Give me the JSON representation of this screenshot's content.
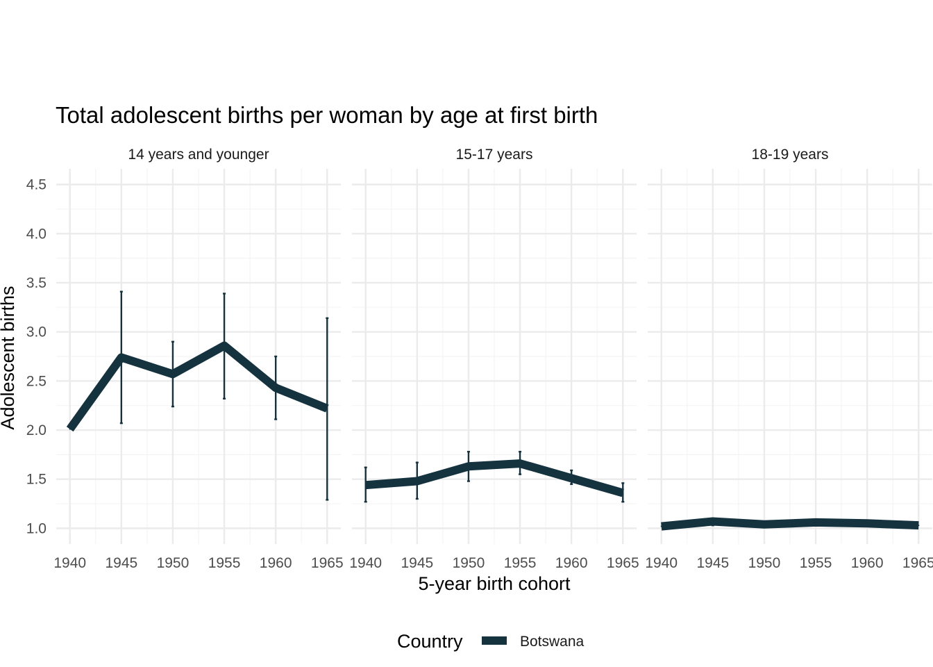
{
  "chart_data": {
    "type": "line",
    "title": "Total adolescent births per woman by age at first birth",
    "xlabel": "5-year birth cohort",
    "ylabel": "Adolescent births",
    "x": [
      1940,
      1945,
      1950,
      1955,
      1960,
      1965
    ],
    "x_tick_labels": [
      "1940",
      "1945",
      "1950",
      "1955",
      "1960",
      "1965"
    ],
    "y_ticks": [
      1.0,
      1.5,
      2.0,
      2.5,
      3.0,
      3.5,
      4.0,
      4.5
    ],
    "y_tick_labels": [
      "1.0",
      "1.5",
      "2.0",
      "2.5",
      "3.0",
      "3.5",
      "4.0",
      "4.5"
    ],
    "ylim": [
      0.84,
      4.66
    ],
    "grid": true,
    "facets": [
      {
        "label": "14 years and younger",
        "series": [
          {
            "name": "Botswana",
            "values": [
              2.01,
              2.74,
              2.57,
              2.86,
              2.43,
              2.22
            ],
            "error_low": [
              null,
              2.07,
              2.24,
              2.32,
              2.11,
              1.29
            ],
            "error_high": [
              null,
              3.41,
              2.9,
              3.39,
              2.75,
              3.14
            ]
          }
        ]
      },
      {
        "label": "15-17 years",
        "series": [
          {
            "name": "Botswana",
            "values": [
              1.44,
              1.48,
              1.63,
              1.66,
              1.51,
              1.36
            ],
            "error_low": [
              1.27,
              1.3,
              1.48,
              1.55,
              1.45,
              1.27
            ],
            "error_high": [
              1.62,
              1.67,
              1.78,
              1.78,
              1.59,
              1.46
            ]
          }
        ]
      },
      {
        "label": "18-19 years",
        "series": [
          {
            "name": "Botswana",
            "values": [
              1.02,
              1.07,
              1.04,
              1.06,
              1.05,
              1.03
            ],
            "error_low": [
              null,
              1.03,
              null,
              null,
              null,
              null
            ],
            "error_high": [
              null,
              1.1,
              null,
              null,
              null,
              null
            ]
          }
        ]
      }
    ],
    "legend": {
      "title": "Country",
      "position": "bottom",
      "entries": [
        {
          "name": "Botswana",
          "color": "#15333f"
        }
      ]
    },
    "colors": {
      "series": "#15333f",
      "grid_major": "#ebebeb",
      "grid_minor": "#f4f4f4"
    }
  }
}
